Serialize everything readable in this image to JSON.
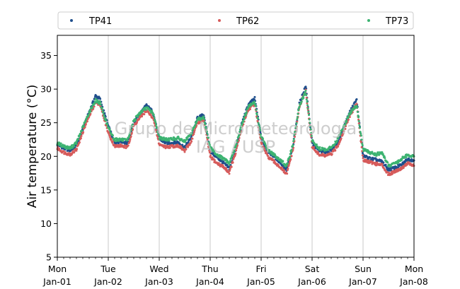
{
  "chart_data": {
    "type": "scatter",
    "ylabel": "Air temperature (°C)",
    "xlabel": "",
    "ylim": [
      5,
      38
    ],
    "yticks": [
      5,
      10,
      15,
      20,
      25,
      30,
      35
    ],
    "xlim": [
      "2024-01-01",
      "2024-01-08"
    ],
    "xticks": [
      {
        "date": "2024-01-01",
        "day": "Mon",
        "label": "Jan-01"
      },
      {
        "date": "2024-01-02",
        "day": "Tue",
        "label": "Jan-02"
      },
      {
        "date": "2024-01-03",
        "day": "Wed",
        "label": "Jan-03"
      },
      {
        "date": "2024-01-04",
        "day": "Thu",
        "label": "Jan-04"
      },
      {
        "date": "2024-01-05",
        "day": "Fri",
        "label": "Jan-05"
      },
      {
        "date": "2024-01-06",
        "day": "Sat",
        "label": "Jan-06"
      },
      {
        "date": "2024-01-07",
        "day": "Sun",
        "label": "Jan-07"
      },
      {
        "date": "2024-01-08",
        "day": "Mon",
        "label": "Jan-08"
      }
    ],
    "grid": "vertical",
    "legend": "top, horizontal",
    "watermark": [
      "Grupo de Micrometeorologia",
      "IAG / USP"
    ],
    "series": [
      {
        "name": "TP41",
        "color": "#1f4e8c",
        "x": [
          "2024-01-01T00:00",
          "2024-01-01T03:00",
          "2024-01-01T06:00",
          "2024-01-01T09:00",
          "2024-01-01T12:00",
          "2024-01-01T15:00",
          "2024-01-01T18:00",
          "2024-01-01T20:00",
          "2024-01-02T00:00",
          "2024-01-02T03:00",
          "2024-01-02T06:00",
          "2024-01-02T09:00",
          "2024-01-02T12:00",
          "2024-01-02T15:00",
          "2024-01-02T18:00",
          "2024-01-02T21:00",
          "2024-01-03T00:00",
          "2024-01-03T03:00",
          "2024-01-03T06:00",
          "2024-01-03T09:00",
          "2024-01-03T12:00",
          "2024-01-03T15:00",
          "2024-01-03T18:00",
          "2024-01-03T21:00",
          "2024-01-04T00:00",
          "2024-01-04T03:00",
          "2024-01-04T06:00",
          "2024-01-04T09:00",
          "2024-01-04T12:00",
          "2024-01-04T15:00",
          "2024-01-04T18:00",
          "2024-01-04T21:00",
          "2024-01-05T00:00",
          "2024-01-05T03:00",
          "2024-01-05T06:00",
          "2024-01-05T09:00",
          "2024-01-05T12:00",
          "2024-01-05T15:00",
          "2024-01-05T18:00",
          "2024-01-05T21:00",
          "2024-01-06T00:00",
          "2024-01-06T03:00",
          "2024-01-06T06:00",
          "2024-01-06T09:00",
          "2024-01-06T12:00",
          "2024-01-06T15:00",
          "2024-01-06T18:00",
          "2024-01-06T21:00",
          "2024-01-07T00:00",
          "2024-01-07T03:00",
          "2024-01-07T06:00",
          "2024-01-07T09:00",
          "2024-01-07T12:00",
          "2024-01-07T15:00",
          "2024-01-07T18:00",
          "2024-01-07T21:00",
          "2024-01-08T00:00"
        ],
        "y": [
          21.8,
          21.2,
          20.9,
          21.6,
          24.0,
          26.6,
          29.0,
          28.6,
          24.5,
          22.0,
          22.3,
          21.9,
          25.0,
          26.4,
          27.6,
          26.6,
          22.6,
          22.0,
          22.0,
          22.1,
          21.3,
          22.8,
          25.7,
          26.2,
          20.8,
          19.9,
          19.1,
          18.2,
          20.9,
          25.0,
          27.7,
          28.6,
          22.8,
          20.8,
          20.0,
          19.1,
          18.0,
          21.5,
          27.8,
          30.5,
          22.0,
          20.9,
          20.6,
          20.9,
          22.0,
          24.3,
          26.8,
          28.4,
          20.1,
          19.7,
          19.5,
          19.2,
          18.0,
          18.3,
          18.7,
          19.6,
          19.4
        ]
      },
      {
        "name": "TP62",
        "color": "#d65b5b",
        "x": [
          "2024-01-01T00:00",
          "2024-01-01T03:00",
          "2024-01-01T06:00",
          "2024-01-01T09:00",
          "2024-01-01T12:00",
          "2024-01-01T15:00",
          "2024-01-01T18:00",
          "2024-01-01T20:00",
          "2024-01-02T00:00",
          "2024-01-02T03:00",
          "2024-01-02T06:00",
          "2024-01-02T09:00",
          "2024-01-02T12:00",
          "2024-01-02T15:00",
          "2024-01-02T18:00",
          "2024-01-02T21:00",
          "2024-01-03T00:00",
          "2024-01-03T03:00",
          "2024-01-03T06:00",
          "2024-01-03T09:00",
          "2024-01-03T12:00",
          "2024-01-03T15:00",
          "2024-01-03T18:00",
          "2024-01-03T21:00",
          "2024-01-04T00:00",
          "2024-01-04T03:00",
          "2024-01-04T06:00",
          "2024-01-04T09:00",
          "2024-01-04T12:00",
          "2024-01-04T15:00",
          "2024-01-04T18:00",
          "2024-01-04T21:00",
          "2024-01-05T00:00",
          "2024-01-05T03:00",
          "2024-01-05T06:00",
          "2024-01-05T09:00",
          "2024-01-05T12:00",
          "2024-01-05T15:00",
          "2024-01-05T18:00",
          "2024-01-05T21:00",
          "2024-01-06T00:00",
          "2024-01-06T03:00",
          "2024-01-06T06:00",
          "2024-01-06T09:00",
          "2024-01-06T12:00",
          "2024-01-06T15:00",
          "2024-01-06T18:00",
          "2024-01-06T21:00",
          "2024-01-07T00:00",
          "2024-01-07T03:00",
          "2024-01-07T06:00",
          "2024-01-07T09:00",
          "2024-01-07T12:00",
          "2024-01-07T15:00",
          "2024-01-07T18:00",
          "2024-01-07T21:00",
          "2024-01-08T00:00"
        ],
        "y": [
          21.2,
          20.6,
          20.3,
          21.0,
          23.6,
          26.0,
          28.0,
          27.8,
          23.5,
          21.5,
          21.6,
          21.3,
          24.5,
          25.8,
          26.8,
          25.8,
          21.8,
          21.4,
          21.5,
          21.6,
          20.8,
          22.2,
          25.0,
          25.4,
          20.0,
          19.0,
          18.5,
          17.6,
          20.5,
          24.4,
          27.0,
          27.8,
          22.0,
          20.0,
          19.2,
          18.4,
          17.3,
          21.0,
          27.3,
          29.8,
          21.5,
          20.3,
          20.1,
          20.3,
          21.5,
          23.8,
          26.2,
          27.8,
          19.5,
          19.2,
          18.9,
          18.7,
          17.3,
          17.8,
          18.2,
          19.0,
          18.6
        ]
      },
      {
        "name": "TP73",
        "color": "#3cb371",
        "x": [
          "2024-01-01T00:00",
          "2024-01-01T03:00",
          "2024-01-01T06:00",
          "2024-01-01T09:00",
          "2024-01-01T12:00",
          "2024-01-01T15:00",
          "2024-01-01T18:00",
          "2024-01-01T20:00",
          "2024-01-02T00:00",
          "2024-01-02T03:00",
          "2024-01-02T06:00",
          "2024-01-02T09:00",
          "2024-01-02T12:00",
          "2024-01-02T15:00",
          "2024-01-02T18:00",
          "2024-01-02T21:00",
          "2024-01-03T00:00",
          "2024-01-03T03:00",
          "2024-01-03T06:00",
          "2024-01-03T09:00",
          "2024-01-03T12:00",
          "2024-01-03T15:00",
          "2024-01-03T18:00",
          "2024-01-03T21:00",
          "2024-01-04T00:00",
          "2024-01-04T03:00",
          "2024-01-04T06:00",
          "2024-01-04T09:00",
          "2024-01-04T12:00",
          "2024-01-04T15:00",
          "2024-01-04T18:00",
          "2024-01-04T21:00",
          "2024-01-05T00:00",
          "2024-01-05T03:00",
          "2024-01-05T06:00",
          "2024-01-05T09:00",
          "2024-01-05T12:00",
          "2024-01-05T15:00",
          "2024-01-05T18:00",
          "2024-01-05T21:00",
          "2024-01-06T00:00",
          "2024-01-06T03:00",
          "2024-01-06T06:00",
          "2024-01-06T09:00",
          "2024-01-06T12:00",
          "2024-01-06T15:00",
          "2024-01-06T18:00",
          "2024-01-06T21:00",
          "2024-01-07T00:00",
          "2024-01-07T03:00",
          "2024-01-07T06:00",
          "2024-01-07T09:00",
          "2024-01-07T12:00",
          "2024-01-07T15:00",
          "2024-01-07T18:00",
          "2024-01-07T21:00",
          "2024-01-08T00:00"
        ],
        "y": [
          22.0,
          21.5,
          21.2,
          22.0,
          24.3,
          26.5,
          28.3,
          28.0,
          24.2,
          22.5,
          22.5,
          22.3,
          25.3,
          26.5,
          27.2,
          26.5,
          22.8,
          22.5,
          22.6,
          22.7,
          22.2,
          23.3,
          25.5,
          25.8,
          21.3,
          20.3,
          19.7,
          19.0,
          21.5,
          24.8,
          27.4,
          28.0,
          23.0,
          21.0,
          20.2,
          19.5,
          18.5,
          21.8,
          27.5,
          29.6,
          22.4,
          21.2,
          21.0,
          21.3,
          22.5,
          24.5,
          26.5,
          27.6,
          21.0,
          20.6,
          20.3,
          20.5,
          18.6,
          18.9,
          19.6,
          20.2,
          20.0
        ]
      }
    ]
  }
}
